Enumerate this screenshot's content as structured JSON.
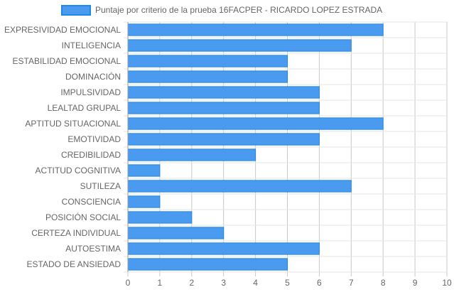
{
  "chart_data": {
    "type": "bar",
    "orientation": "horizontal",
    "legend": {
      "position": "top",
      "items": [
        {
          "label": "Puntaje por criterio de la prueba 16FACPER - RICARDO LOPEZ ESTRADA",
          "color": "#4a9af0"
        }
      ]
    },
    "categories": [
      "EXPRESIVIDAD EMOCIONAL",
      "INTELIGENCIA",
      "ESTABILIDAD EMOCIONAL",
      "DOMINACIÓN",
      "IMPULSIVIDAD",
      "LEALTAD GRUPAL",
      "APTITUD SITUACIONAL",
      "EMOTIVIDAD",
      "CREDIBILIDAD",
      "ACTITUD COGNITIVA",
      "SUTILEZA",
      "CONSCIENCIA",
      "POSICIÓN SOCIAL",
      "CERTEZA INDIVIDUAL",
      "AUTOESTIMA",
      "ESTADO DE ANSIEDAD"
    ],
    "series": [
      {
        "name": "Puntaje por criterio de la prueba 16FACPER - RICARDO LOPEZ ESTRADA",
        "values": [
          8,
          7,
          5,
          5,
          6,
          6,
          8,
          6,
          4,
          1,
          7,
          1,
          2,
          3,
          6,
          5
        ]
      }
    ],
    "xlim": [
      0,
      10
    ],
    "x_ticks": [
      "0",
      "1",
      "2",
      "3",
      "4",
      "5",
      "6",
      "7",
      "8",
      "9",
      "10"
    ],
    "grid": true,
    "colors": {
      "bar_fill": "#4a9af0",
      "bar_border": "#1e88e5",
      "grid": "#e5e5e5",
      "grid_strong": "#c8c8c8",
      "axis": "#999999",
      "text": "#666666"
    }
  }
}
